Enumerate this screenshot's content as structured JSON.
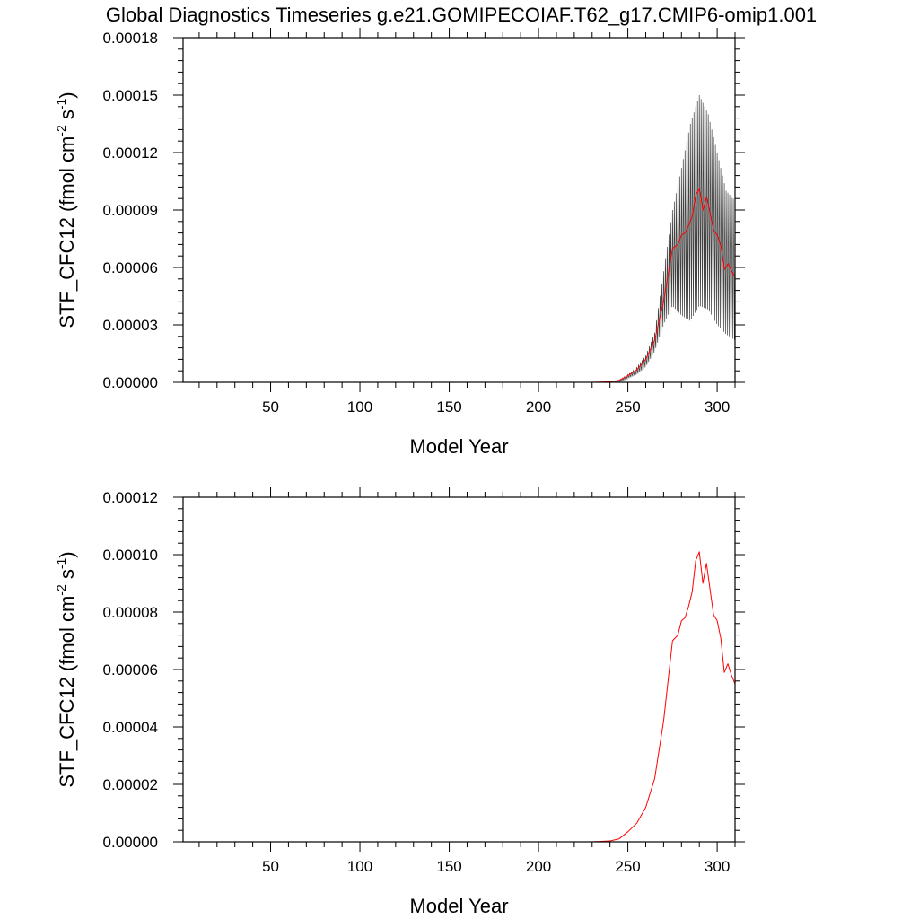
{
  "title": "Global Diagnostics Timeseries g.e21.GOMIPECOIAF.T62_g17.CMIP6-omip1.001",
  "colors": {
    "monthly": "#000000",
    "annual": "#ff0000",
    "axes": "#000000"
  },
  "chart_data": [
    {
      "type": "line",
      "xlabel": "Model Year",
      "ylabel_main": "STF_CFC12 (fmol cm",
      "ylabel_sup1": "-2",
      "ylabel_mid": " s",
      "ylabel_sup2": "-1",
      "ylabel_end": ")",
      "xlim": [
        1,
        310
      ],
      "ylim": [
        0,
        0.00018
      ],
      "x_ticks": [
        50,
        100,
        150,
        200,
        250,
        300
      ],
      "x_tick_labels": [
        "50",
        "100",
        "150",
        "200",
        "250",
        "300"
      ],
      "y_ticks": [
        0,
        3e-05,
        6e-05,
        9e-05,
        0.00012,
        0.00015,
        0.00018
      ],
      "y_tick_labels": [
        "0.00000",
        "0.00003",
        "0.00006",
        "0.00009",
        "0.00012",
        "0.00015",
        "0.00018"
      ],
      "grid": false,
      "series": [
        {
          "style": "monthly-oscillation",
          "color": "#000000",
          "x": [
            230,
            240,
            245,
            250,
            255,
            260,
            265,
            270,
            275,
            280,
            285,
            290,
            295,
            300,
            305,
            310
          ],
          "low": [
            0,
            0,
            0,
            2e-06,
            4e-06,
            8e-06,
            1.6e-05,
            3e-05,
            4e-05,
            3.5e-05,
            3.2e-05,
            4e-05,
            3.8e-05,
            3e-05,
            2.5e-05,
            2.2e-05
          ],
          "high": [
            0,
            0,
            1e-06,
            4e-06,
            8e-06,
            1.4e-05,
            2.6e-05,
            5.8e-05,
            9e-05,
            0.000112,
            0.000135,
            0.00015,
            0.00014,
            0.00012,
            0.0001,
            9.5e-05
          ]
        },
        {
          "style": "annual-mean",
          "color": "#ff0000",
          "x": [
            1,
            230,
            240,
            245,
            250,
            255,
            260,
            265,
            270,
            275,
            278,
            280,
            282,
            284,
            286,
            288,
            290,
            292,
            294,
            296,
            298,
            300,
            302,
            304,
            306,
            308,
            310
          ],
          "y": [
            0,
            0,
            3e-07,
            1e-06,
            3.5e-06,
            6.5e-06,
            1.2e-05,
            2.2e-05,
            4.2e-05,
            7e-05,
            7.2e-05,
            7.7e-05,
            7.8e-05,
            8.2e-05,
            8.7e-05,
            9.8e-05,
            0.000101,
            9e-05,
            9.7e-05,
            8.8e-05,
            7.9e-05,
            7.7e-05,
            7.1e-05,
            5.9e-05,
            6.2e-05,
            5.8e-05,
            5.5e-05
          ]
        }
      ]
    },
    {
      "type": "line",
      "xlabel": "Model Year",
      "ylabel_main": "STF_CFC12 (fmol cm",
      "ylabel_sup1": "-2",
      "ylabel_mid": " s",
      "ylabel_sup2": "-1",
      "ylabel_end": ")",
      "xlim": [
        1,
        310
      ],
      "ylim": [
        0,
        0.00012
      ],
      "x_ticks": [
        50,
        100,
        150,
        200,
        250,
        300
      ],
      "x_tick_labels": [
        "50",
        "100",
        "150",
        "200",
        "250",
        "300"
      ],
      "y_ticks": [
        0,
        2e-05,
        4e-05,
        6e-05,
        8e-05,
        0.0001,
        0.00012
      ],
      "y_tick_labels": [
        "0.00000",
        "0.00002",
        "0.00004",
        "0.00006",
        "0.00008",
        "0.00010",
        "0.00012"
      ],
      "grid": false,
      "series": [
        {
          "style": "annual-mean",
          "color": "#ff0000",
          "x": [
            1,
            230,
            240,
            245,
            250,
            255,
            260,
            265,
            270,
            275,
            278,
            280,
            282,
            284,
            286,
            288,
            290,
            292,
            294,
            296,
            298,
            300,
            302,
            304,
            306,
            308,
            310
          ],
          "y": [
            0,
            0,
            3e-07,
            1e-06,
            3.5e-06,
            6.5e-06,
            1.2e-05,
            2.2e-05,
            4.2e-05,
            7e-05,
            7.2e-05,
            7.7e-05,
            7.8e-05,
            8.2e-05,
            8.7e-05,
            9.8e-05,
            0.000101,
            9e-05,
            9.7e-05,
            8.8e-05,
            7.9e-05,
            7.7e-05,
            7.1e-05,
            5.9e-05,
            6.2e-05,
            5.8e-05,
            5.5e-05
          ]
        }
      ]
    }
  ]
}
